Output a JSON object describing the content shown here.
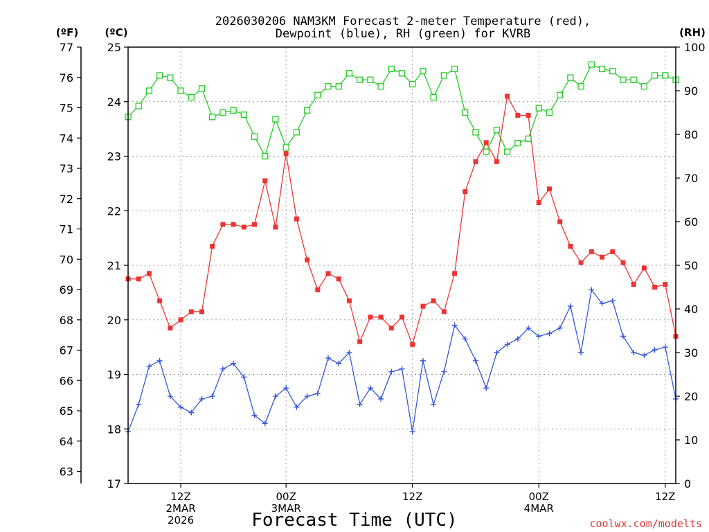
{
  "chart_data": {
    "type": "line",
    "title_line1": "2026030206 NAM3KM Forecast 2-meter Temperature (red),",
    "title_line2": "Dewpoint (blue), RH (green) for KVRB",
    "xlabel": "Forecast Time (UTC)",
    "watermark": "coolwx.com/modelts",
    "left_axis_f": {
      "label": "(ºF)",
      "range": [
        62.6,
        77.5
      ],
      "ticks": [
        63,
        64,
        65,
        66,
        67,
        68,
        69,
        70,
        71,
        72,
        73,
        74,
        75,
        76,
        77
      ]
    },
    "left_axis_c": {
      "label": "(ºC)",
      "range": [
        17,
        25
      ],
      "ticks": [
        17,
        18,
        19,
        20,
        21,
        22,
        23,
        24,
        25
      ]
    },
    "right_axis": {
      "label": "(RH)",
      "range": [
        0,
        100
      ],
      "ticks": [
        0,
        10,
        20,
        30,
        40,
        50,
        60,
        70,
        80,
        90,
        100
      ]
    },
    "x_range": [
      7,
      58
    ],
    "x_ticks": [
      {
        "hour": 12,
        "lines": [
          "12Z",
          "2MAR",
          "2026"
        ]
      },
      {
        "hour": 22,
        "lines": [
          "00Z",
          "3MAR"
        ]
      },
      {
        "hour": 34,
        "lines": [
          "12Z"
        ]
      },
      {
        "hour": 46,
        "lines": [
          "00Z",
          "4MAR"
        ]
      },
      {
        "hour": 58,
        "lines": [
          "12Z"
        ]
      }
    ],
    "x_hour_offset": 6,
    "series": [
      {
        "name": "Temperature",
        "unit": "°C",
        "color": "#ee3333",
        "marker": "filled-square",
        "x": [
          7,
          8,
          9,
          10,
          11,
          12,
          13,
          14,
          15,
          16,
          17,
          18,
          19,
          20,
          21,
          22,
          23,
          24,
          25,
          26,
          27,
          28,
          29,
          30,
          31,
          32,
          33,
          34,
          35,
          36,
          37,
          38,
          39,
          40,
          41,
          42,
          43,
          44,
          45,
          46,
          47,
          48,
          49,
          50,
          51,
          52,
          53,
          54,
          55,
          56,
          57,
          58,
          59
        ],
        "values": [
          20.75,
          20.75,
          20.85,
          20.35,
          19.85,
          20.0,
          20.15,
          20.15,
          21.35,
          21.75,
          21.75,
          21.7,
          21.75,
          22.55,
          21.7,
          23.05,
          21.85,
          21.1,
          20.55,
          20.85,
          20.75,
          20.35,
          19.6,
          20.05,
          20.05,
          19.85,
          20.05,
          19.55,
          20.25,
          20.35,
          20.15,
          20.85,
          22.35,
          22.9,
          23.25,
          22.9,
          24.1,
          23.75,
          23.75,
          22.15,
          22.4,
          21.8,
          21.35,
          21.05,
          21.25,
          21.15,
          21.25,
          21.05,
          20.65,
          20.95,
          20.6,
          20.65,
          19.7
        ]
      },
      {
        "name": "Dewpoint",
        "unit": "°C",
        "color": "#3355dd",
        "marker": "plus",
        "x": [
          7,
          8,
          9,
          10,
          11,
          12,
          13,
          14,
          15,
          16,
          17,
          18,
          19,
          20,
          21,
          22,
          23,
          24,
          25,
          26,
          27,
          28,
          29,
          30,
          31,
          32,
          33,
          34,
          35,
          36,
          37,
          38,
          39,
          40,
          41,
          42,
          43,
          44,
          45,
          46,
          47,
          48,
          49,
          50,
          51,
          52,
          53,
          54,
          55,
          56,
          57,
          58,
          59
        ],
        "values": [
          17.95,
          18.45,
          19.15,
          19.25,
          18.6,
          18.4,
          18.3,
          18.55,
          18.6,
          19.1,
          19.2,
          18.95,
          18.25,
          18.1,
          18.6,
          18.75,
          18.4,
          18.6,
          18.65,
          19.3,
          19.2,
          19.4,
          18.45,
          18.75,
          18.55,
          19.05,
          19.1,
          17.95,
          19.25,
          18.45,
          19.05,
          19.9,
          19.65,
          19.25,
          18.75,
          19.4,
          19.55,
          19.65,
          19.85,
          19.7,
          19.75,
          19.85,
          20.25,
          19.4,
          20.55,
          20.3,
          20.35,
          19.7,
          19.4,
          19.35,
          19.45,
          19.5,
          18.55
        ]
      },
      {
        "name": "RH",
        "unit": "%",
        "color": "#22cc22",
        "marker": "open-square",
        "x": [
          7,
          8,
          9,
          10,
          11,
          12,
          13,
          14,
          15,
          16,
          17,
          18,
          19,
          20,
          21,
          22,
          23,
          24,
          25,
          26,
          27,
          28,
          29,
          30,
          31,
          32,
          33,
          34,
          35,
          36,
          37,
          38,
          39,
          40,
          41,
          42,
          43,
          44,
          45,
          46,
          47,
          48,
          49,
          50,
          51,
          52,
          53,
          54,
          55,
          56,
          57,
          58,
          59
        ],
        "values": [
          84,
          86.5,
          90,
          93.5,
          93,
          90,
          88.5,
          90.5,
          84,
          85,
          85.5,
          84.5,
          79.5,
          75,
          83.5,
          77,
          80.5,
          85.5,
          89,
          91,
          91,
          94,
          92.5,
          92.5,
          91,
          95,
          94,
          91.5,
          94.5,
          88.5,
          93.5,
          95,
          85,
          80.5,
          76,
          81,
          76,
          78,
          79,
          86,
          85,
          89,
          93,
          91,
          96,
          95,
          94.5,
          92.5,
          92.5,
          91,
          93.5,
          93.5,
          92.5
        ]
      }
    ]
  }
}
